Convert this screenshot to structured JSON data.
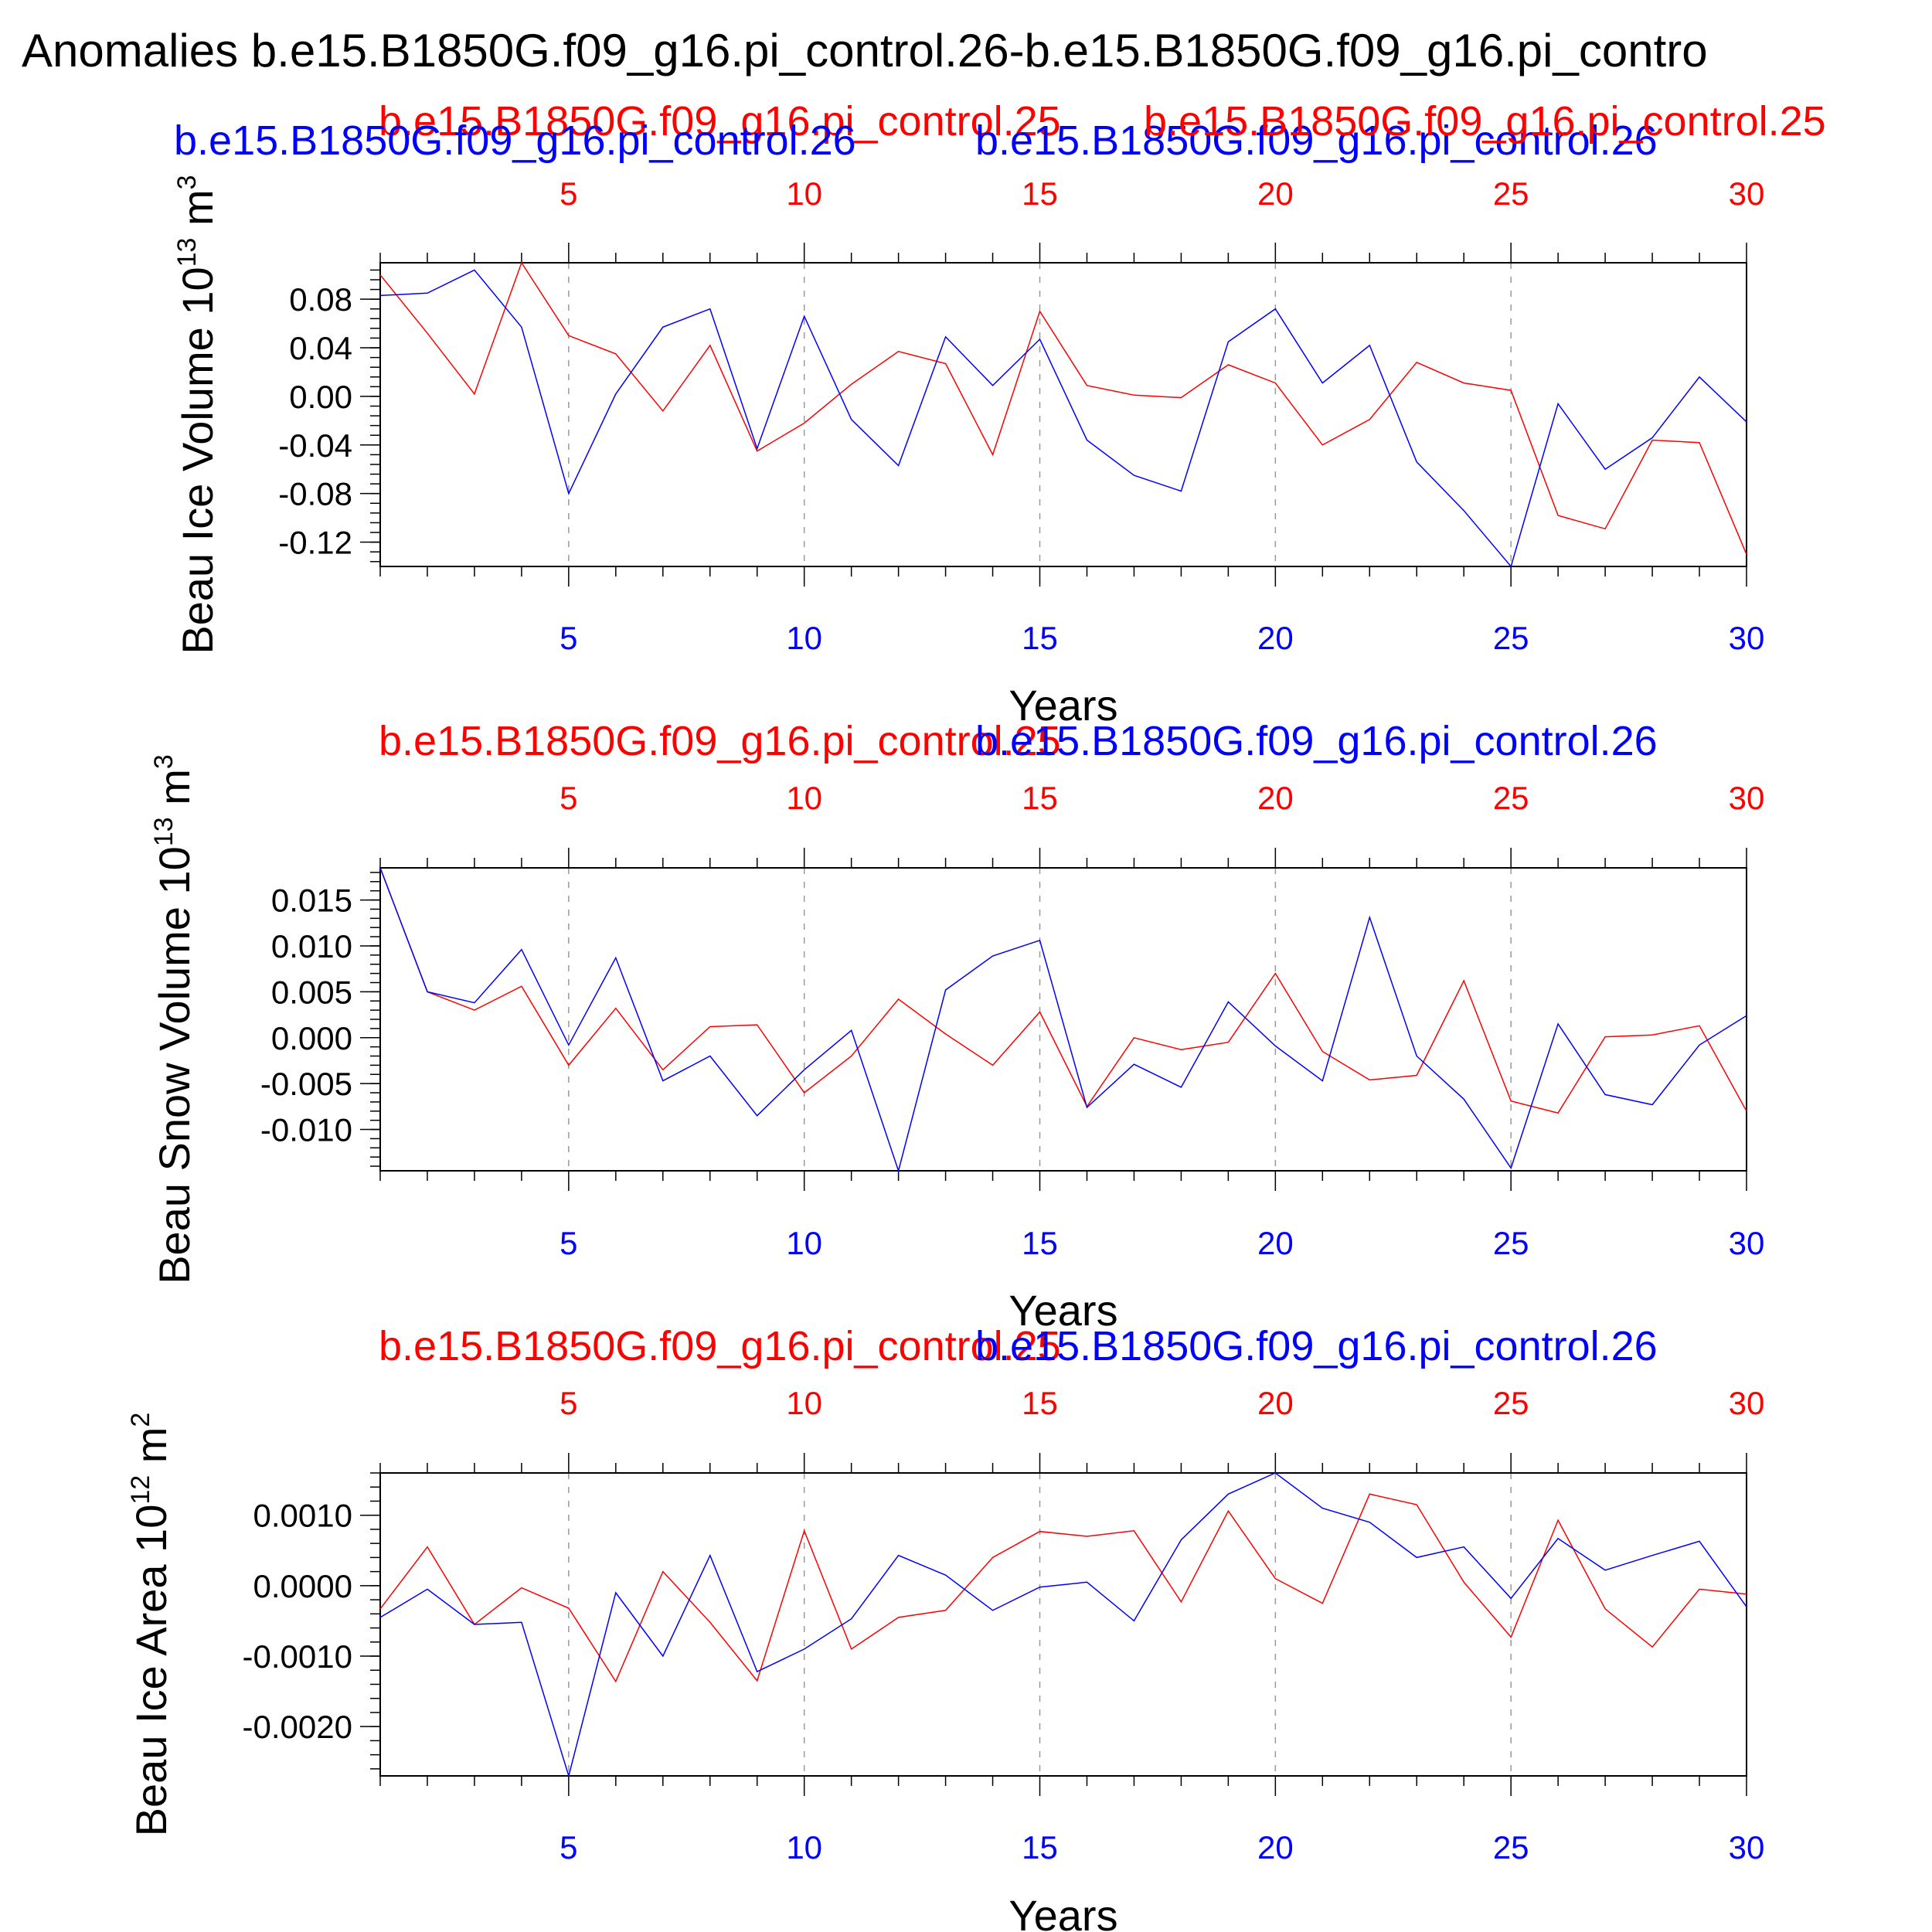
{
  "page_title": "Anomalies b.e15.B1850G.f09_g16.pi_control.26-b.e15.B1850G.f09_g16.pi_contro",
  "colors": {
    "series1": "#ff0000",
    "series2": "#0000ff",
    "axis": "#000000",
    "grid": "#999999"
  },
  "chart_data": [
    {
      "type": "line",
      "title": "",
      "xlabel": "Years",
      "ylabel": "Beau Ice Volume 10",
      "ylabel_sup": "13",
      "ylabel_unit": " m",
      "ylabel_unit_sup": "3",
      "xlim": [
        1,
        30
      ],
      "ylim": [
        -0.14,
        0.11
      ],
      "yticks": [
        0.08,
        0.04,
        0.0,
        -0.04,
        -0.08,
        -0.12
      ],
      "ytick_labels": [
        "0.08",
        "0.04",
        "0.00",
        "-0.04",
        "-0.08",
        "-0.12"
      ],
      "xticks": [
        5,
        10,
        15,
        20,
        25,
        30
      ],
      "xtick_labels": [
        "5",
        "10",
        "15",
        "20",
        "25",
        "30"
      ],
      "legend_labels": [
        "b.e15.B1850G.f09_g16.pi_control.25",
        "b.e15.B1850G.f09_g16.pi_control.26",
        "b.e15.B1850G.f09_g16.pi_control.25",
        "b.e15.B1850G.f09_g16.pi_control.26"
      ],
      "x": [
        1,
        2,
        3,
        4,
        5,
        6,
        7,
        8,
        9,
        10,
        11,
        12,
        13,
        14,
        15,
        16,
        17,
        18,
        19,
        20,
        21,
        22,
        23,
        24,
        25,
        26,
        27,
        28,
        29,
        30
      ],
      "series": [
        {
          "values": [
            0.1,
            0.052,
            0.002,
            0.11,
            0.05,
            0.035,
            -0.012,
            0.042,
            -0.045,
            -0.022,
            0.01,
            0.037,
            0.027,
            -0.048,
            0.07,
            0.009,
            0.001,
            -0.001,
            0.026,
            0.011,
            -0.04,
            -0.019,
            0.028,
            0.011,
            0.005,
            -0.098,
            -0.109,
            -0.036,
            -0.038,
            -0.13
          ]
        },
        {
          "values": [
            0.083,
            0.085,
            0.104,
            0.057,
            -0.08,
            0.002,
            0.057,
            0.072,
            -0.043,
            0.066,
            -0.019,
            -0.057,
            0.049,
            0.009,
            0.047,
            -0.036,
            -0.065,
            -0.078,
            0.045,
            0.072,
            0.011,
            0.042,
            -0.054,
            -0.094,
            -0.14,
            -0.006,
            -0.06,
            -0.034,
            0.016,
            -0.021
          ]
        }
      ]
    },
    {
      "type": "line",
      "title": "",
      "xlabel": "Years",
      "ylabel": "Beau Snow Volume 10",
      "ylabel_sup": "13",
      "ylabel_unit": " m",
      "ylabel_unit_sup": "3",
      "xlim": [
        1,
        30
      ],
      "ylim": [
        -0.0145,
        0.0185
      ],
      "yticks": [
        0.015,
        0.01,
        0.005,
        0.0,
        -0.005,
        -0.01
      ],
      "ytick_labels": [
        "0.015",
        "0.010",
        "0.005",
        "0.000",
        "-0.005",
        "-0.010"
      ],
      "xticks": [
        5,
        10,
        15,
        20,
        25,
        30
      ],
      "xtick_labels": [
        "5",
        "10",
        "15",
        "20",
        "25",
        "30"
      ],
      "legend_labels": [
        "b.e15.B1850G.f09_g16.pi_control.25",
        "b.e15.B1850G.f09_g16.pi_control.26"
      ],
      "x": [
        1,
        2,
        3,
        4,
        5,
        6,
        7,
        8,
        9,
        10,
        11,
        12,
        13,
        14,
        15,
        16,
        17,
        18,
        19,
        20,
        21,
        22,
        23,
        24,
        25,
        26,
        27,
        28,
        29,
        30
      ],
      "series": [
        {
          "values": [
            0.0185,
            0.005,
            0.003,
            0.0056,
            -0.003,
            0.0032,
            -0.0035,
            0.0012,
            0.0014,
            -0.006,
            -0.002,
            0.0042,
            0.0004,
            -0.003,
            0.0028,
            -0.0075,
            0.0,
            -0.0013,
            -0.0005,
            0.007,
            -0.0015,
            -0.0046,
            -0.0041,
            0.0062,
            -0.0069,
            -0.0082,
            0.0001,
            0.0003,
            0.0013,
            -0.008
          ]
        },
        {
          "values": [
            0.0185,
            0.005,
            0.0038,
            0.0096,
            -0.0008,
            0.0087,
            -0.0047,
            -0.002,
            -0.0085,
            -0.0035,
            0.0008,
            -0.0145,
            0.0052,
            0.0089,
            0.0106,
            -0.0076,
            -0.0029,
            -0.0054,
            0.0039,
            -0.0009,
            -0.0047,
            0.0131,
            -0.002,
            -0.0067,
            -0.0142,
            0.0015,
            -0.0062,
            -0.0073,
            -0.0008,
            0.0024
          ]
        }
      ]
    },
    {
      "type": "line",
      "title": "",
      "xlabel": "Years",
      "ylabel": "Beau Ice Area 10",
      "ylabel_sup": "12",
      "ylabel_unit": " m",
      "ylabel_unit_sup": "2",
      "xlim": [
        1,
        30
      ],
      "ylim": [
        -0.0027,
        0.0016
      ],
      "yticks": [
        0.001,
        0.0,
        -0.001,
        -0.002
      ],
      "ytick_labels": [
        "0.0010",
        "0.0000",
        "-0.0010",
        "-0.0020"
      ],
      "xticks": [
        5,
        10,
        15,
        20,
        25,
        30
      ],
      "xtick_labels": [
        "5",
        "10",
        "15",
        "20",
        "25",
        "30"
      ],
      "legend_labels": [
        "b.e15.B1850G.f09_g16.pi_control.25",
        "b.e15.B1850G.f09_g16.pi_control.26"
      ],
      "x": [
        1,
        2,
        3,
        4,
        5,
        6,
        7,
        8,
        9,
        10,
        11,
        12,
        13,
        14,
        15,
        16,
        17,
        18,
        19,
        20,
        21,
        22,
        23,
        24,
        25,
        26,
        27,
        28,
        29,
        30
      ],
      "series": [
        {
          "values": [
            -0.00033,
            0.00055,
            -0.00055,
            -3e-05,
            -0.00032,
            -0.00136,
            0.0002,
            -0.00052,
            -0.00135,
            0.00078,
            -0.0009,
            -0.00045,
            -0.00035,
            0.0004,
            0.00077,
            0.0007,
            0.00078,
            -0.00023,
            0.00106,
            0.0001,
            -0.00025,
            0.0013,
            0.00115,
            5e-05,
            -0.00073,
            0.00093,
            -0.00033,
            -0.00087,
            -5e-05,
            -0.00012
          ]
        },
        {
          "values": [
            -0.00045,
            -5e-05,
            -0.00055,
            -0.00052,
            -0.0027,
            -0.0001,
            -0.001,
            0.00043,
            -0.00122,
            -0.0009,
            -0.00047,
            0.00043,
            0.00015,
            -0.00035,
            -2e-05,
            5e-05,
            -0.0005,
            0.00065,
            0.0013,
            0.0016,
            0.0011,
            0.0009,
            0.0004,
            0.00055,
            -0.00018,
            0.00067,
            0.00022,
            0.00043,
            0.00063,
            -0.0003
          ]
        }
      ]
    }
  ]
}
